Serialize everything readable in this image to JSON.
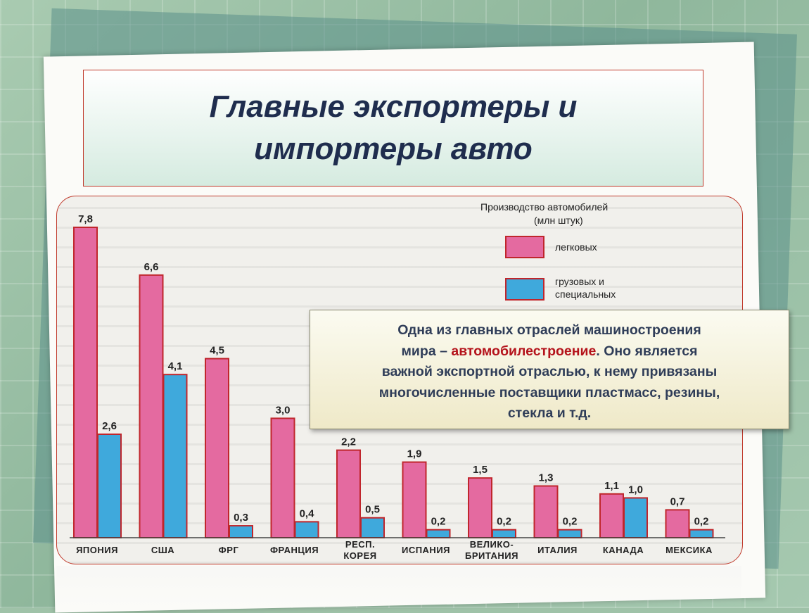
{
  "slide": {
    "title": "Главные экспортеры и импортеры авто",
    "callout": {
      "line1": "Одна из главных отраслей машиностроения",
      "line2_pre": "мира – ",
      "line2_highlight": "автомобилестроение",
      "line2_post": ". Оно является",
      "line3": "важной экспортной отраслью, к нему привязаны",
      "line4": "многочисленные поставщики пластмасс, резины,",
      "line5": "стекла и т.д."
    }
  },
  "chart_data": {
    "type": "bar",
    "title": "Производство автомобилей",
    "subtitle": "(млн штук)",
    "categories": [
      "ЯПОНИЯ",
      "США",
      "ФРГ",
      "ФРАНЦИЯ",
      "РЕСП. КОРЕЯ",
      "ИСПАНИЯ",
      "ВЕЛИКО-БРИТАНИЯ",
      "ИТАЛИЯ",
      "КАНАДА",
      "МЕКСИКА"
    ],
    "category_lines": [
      [
        "ЯПОНИЯ"
      ],
      [
        "США"
      ],
      [
        "ФРГ"
      ],
      [
        "ФРАНЦИЯ"
      ],
      [
        "РЕСП.",
        "КОРЕЯ"
      ],
      [
        "ИСПАНИЯ"
      ],
      [
        "ВЕЛИКО-",
        "БРИТАНИЯ"
      ],
      [
        "ИТАЛИЯ"
      ],
      [
        "КАНАДА"
      ],
      [
        "МЕКСИКА"
      ]
    ],
    "series": [
      {
        "name": "легковых",
        "color": "#e46aa0",
        "values": [
          7.8,
          6.6,
          4.5,
          3.0,
          2.2,
          1.9,
          1.5,
          1.3,
          1.1,
          0.7
        ],
        "labels": [
          "7,8",
          "6,6",
          "4,5",
          "3,0",
          "2,2",
          "1,9",
          "1,5",
          "1,3",
          "1,1",
          "0,7"
        ]
      },
      {
        "name": "грузовых и специальных",
        "name_lines": [
          "грузовых и",
          "специальных"
        ],
        "color": "#3fa9dc",
        "values": [
          2.6,
          4.1,
          0.3,
          0.4,
          0.5,
          0.2,
          0.2,
          0.2,
          1.0,
          0.2
        ],
        "labels": [
          "2,6",
          "4,1",
          "0,3",
          "0,4",
          "0,5",
          "0,2",
          "0,2",
          "0,2",
          "1,0",
          "0,2"
        ]
      }
    ],
    "ylim": [
      0,
      7.8
    ],
    "legend_position": "top-right",
    "grid": false
  }
}
